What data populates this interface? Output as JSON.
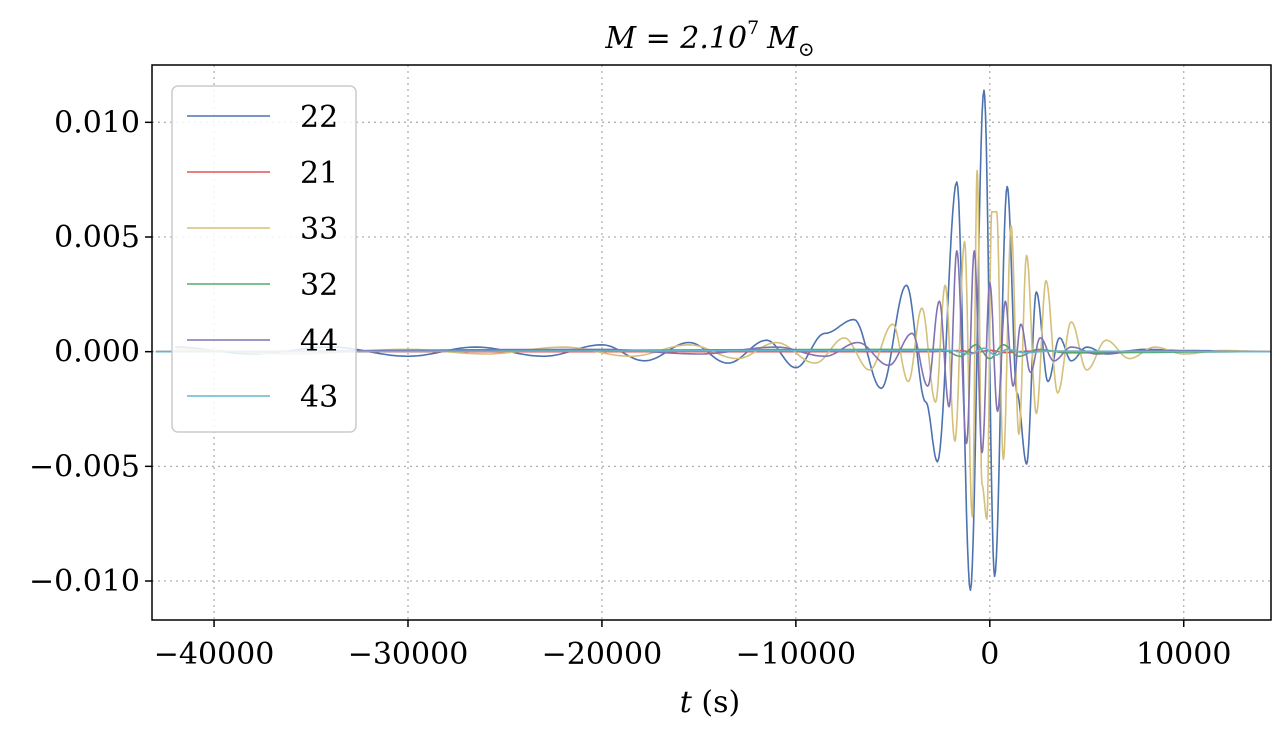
{
  "chart_data": {
    "type": "line",
    "title": "M = 2.10⁷ M☉",
    "title_parts": {
      "main": "M = 2.10",
      "exp": "7",
      "unit": "M",
      "unit_sub": "⊙"
    },
    "xlabel": "t (s)",
    "ylabel": "",
    "xlim": [
      -43200,
      14500
    ],
    "ylim": [
      -0.0117,
      0.0125
    ],
    "xticks": [
      -40000,
      -30000,
      -20000,
      -10000,
      0,
      10000
    ],
    "xtick_labels": [
      "−40000",
      "−30000",
      "−20000",
      "−10000",
      "0",
      "10000"
    ],
    "yticks": [
      0.01,
      0.005,
      0.0,
      -0.005,
      -0.01
    ],
    "ytick_labels": [
      "0.010",
      "0.005",
      "0.000",
      "−0.005",
      "−0.010"
    ],
    "grid": true,
    "legend_position": "top-left",
    "series": [
      {
        "name": "22",
        "color": "#4c72b0",
        "peaks": [
          [
            -42000,
            0.0002
          ],
          [
            -38000,
            -0.0001
          ],
          [
            -34000,
            0.0002
          ],
          [
            -30000,
            -0.0002
          ],
          [
            -26500,
            0.0002
          ],
          [
            -23000,
            -0.0002
          ],
          [
            -20000,
            0.0003
          ],
          [
            -17800,
            -0.0004
          ],
          [
            -15500,
            0.0004
          ],
          [
            -13500,
            -0.0005
          ],
          [
            -11500,
            0.0005
          ],
          [
            -10000,
            -0.0007
          ],
          [
            -8500,
            0.0008
          ],
          [
            -7000,
            0.0014
          ],
          [
            -5600,
            -0.0016
          ],
          [
            -4300,
            0.0029
          ],
          [
            -3300,
            -0.0022
          ],
          [
            -2700,
            -0.0048
          ],
          [
            -1700,
            0.0074
          ],
          [
            -1000,
            -0.0104
          ],
          [
            -300,
            0.0114
          ],
          [
            250,
            -0.0098
          ],
          [
            900,
            0.0072
          ],
          [
            1400,
            -0.0018
          ],
          [
            1900,
            -0.0049
          ],
          [
            2400,
            0.0026
          ],
          [
            3000,
            -0.0013
          ],
          [
            3600,
            0.0006
          ],
          [
            4200,
            -0.0004
          ],
          [
            5000,
            0.0002
          ],
          [
            6000,
            -0.0001
          ],
          [
            8000,
            0.0001
          ],
          [
            10000,
            5e-05
          ],
          [
            14500,
            0.0
          ]
        ]
      },
      {
        "name": "21",
        "color": "#dd5555",
        "peaks": [
          [
            -43000,
            0.0
          ],
          [
            -3000,
            0.0
          ],
          [
            -1500,
            5e-05
          ],
          [
            -800,
            -5e-05
          ],
          [
            0,
            6e-05
          ],
          [
            800,
            -4e-05
          ],
          [
            2000,
            2e-05
          ],
          [
            14500,
            0.0
          ]
        ]
      },
      {
        "name": "33",
        "color": "#d4c07a",
        "peaks": [
          [
            -42000,
            0.0001
          ],
          [
            -36000,
            -0.0001
          ],
          [
            -30000,
            0.0001
          ],
          [
            -26000,
            -0.0001
          ],
          [
            -22000,
            0.0002
          ],
          [
            -18500,
            -0.0002
          ],
          [
            -15500,
            0.0003
          ],
          [
            -13000,
            -0.0003
          ],
          [
            -11000,
            0.0004
          ],
          [
            -9000,
            -0.0005
          ],
          [
            -7500,
            0.0006
          ],
          [
            -6200,
            -0.0008
          ],
          [
            -5000,
            0.0012
          ],
          [
            -4200,
            -0.0013
          ],
          [
            -3500,
            0.0019
          ],
          [
            -2800,
            -0.0022
          ],
          [
            -2300,
            0.0029
          ],
          [
            -1800,
            -0.0039
          ],
          [
            -1300,
            0.0048
          ],
          [
            -900,
            -0.0072
          ],
          [
            -650,
            0.0079
          ],
          [
            -400,
            -0.0058
          ],
          [
            -150,
            -0.0073
          ],
          [
            100,
            0.0061
          ],
          [
            350,
            0.0061
          ],
          [
            700,
            -0.0047
          ],
          [
            1100,
            0.0055
          ],
          [
            1500,
            -0.0036
          ],
          [
            1900,
            0.0042
          ],
          [
            2400,
            -0.0027
          ],
          [
            2900,
            0.0031
          ],
          [
            3500,
            -0.0018
          ],
          [
            4200,
            0.0013
          ],
          [
            5000,
            -0.0008
          ],
          [
            6000,
            0.0005
          ],
          [
            7200,
            -0.0003
          ],
          [
            8500,
            0.0002
          ],
          [
            10000,
            -0.0001
          ],
          [
            12000,
            5e-05
          ],
          [
            14500,
            0.0
          ]
        ]
      },
      {
        "name": "32",
        "color": "#55a868",
        "peaks": [
          [
            -43000,
            0.0
          ],
          [
            -2500,
            0.0001
          ],
          [
            -1500,
            -0.0002
          ],
          [
            -700,
            0.0003
          ],
          [
            0,
            -0.0003
          ],
          [
            700,
            0.0003
          ],
          [
            1500,
            -0.0002
          ],
          [
            2500,
            0.0001
          ],
          [
            4000,
            -5e-05
          ],
          [
            14500,
            0.0
          ]
        ]
      },
      {
        "name": "44",
        "color": "#8172b2",
        "peaks": [
          [
            -43000,
            0.0
          ],
          [
            -20000,
            0.0001
          ],
          [
            -15000,
            -0.0001
          ],
          [
            -11000,
            0.0002
          ],
          [
            -8500,
            -0.0002
          ],
          [
            -6800,
            0.0004
          ],
          [
            -5200,
            -0.0006
          ],
          [
            -4000,
            0.0008
          ],
          [
            -3200,
            -0.0015
          ],
          [
            -2600,
            0.0022
          ],
          [
            -2100,
            -0.0024
          ],
          [
            -1700,
            0.0044
          ],
          [
            -1200,
            -0.004
          ],
          [
            -800,
            0.0044
          ],
          [
            -400,
            -0.0044
          ],
          [
            0,
            0.003
          ],
          [
            400,
            -0.0026
          ],
          [
            800,
            0.0022
          ],
          [
            1200,
            -0.0015
          ],
          [
            1600,
            0.0012
          ],
          [
            2100,
            -0.0009
          ],
          [
            2600,
            0.0006
          ],
          [
            3300,
            -0.0004
          ],
          [
            4200,
            0.0002
          ],
          [
            5500,
            -0.0001
          ],
          [
            7500,
            5e-05
          ],
          [
            14500,
            0.0
          ]
        ]
      },
      {
        "name": "43",
        "color": "#64b5cd",
        "peaks": [
          [
            -43000,
            0.0
          ],
          [
            -2000,
            5e-05
          ],
          [
            -1000,
            -0.0001
          ],
          [
            -300,
            0.00015
          ],
          [
            300,
            -0.00015
          ],
          [
            900,
            0.0001
          ],
          [
            1800,
            -5e-05
          ],
          [
            3000,
            2e-05
          ],
          [
            14500,
            0.0
          ]
        ]
      }
    ]
  }
}
